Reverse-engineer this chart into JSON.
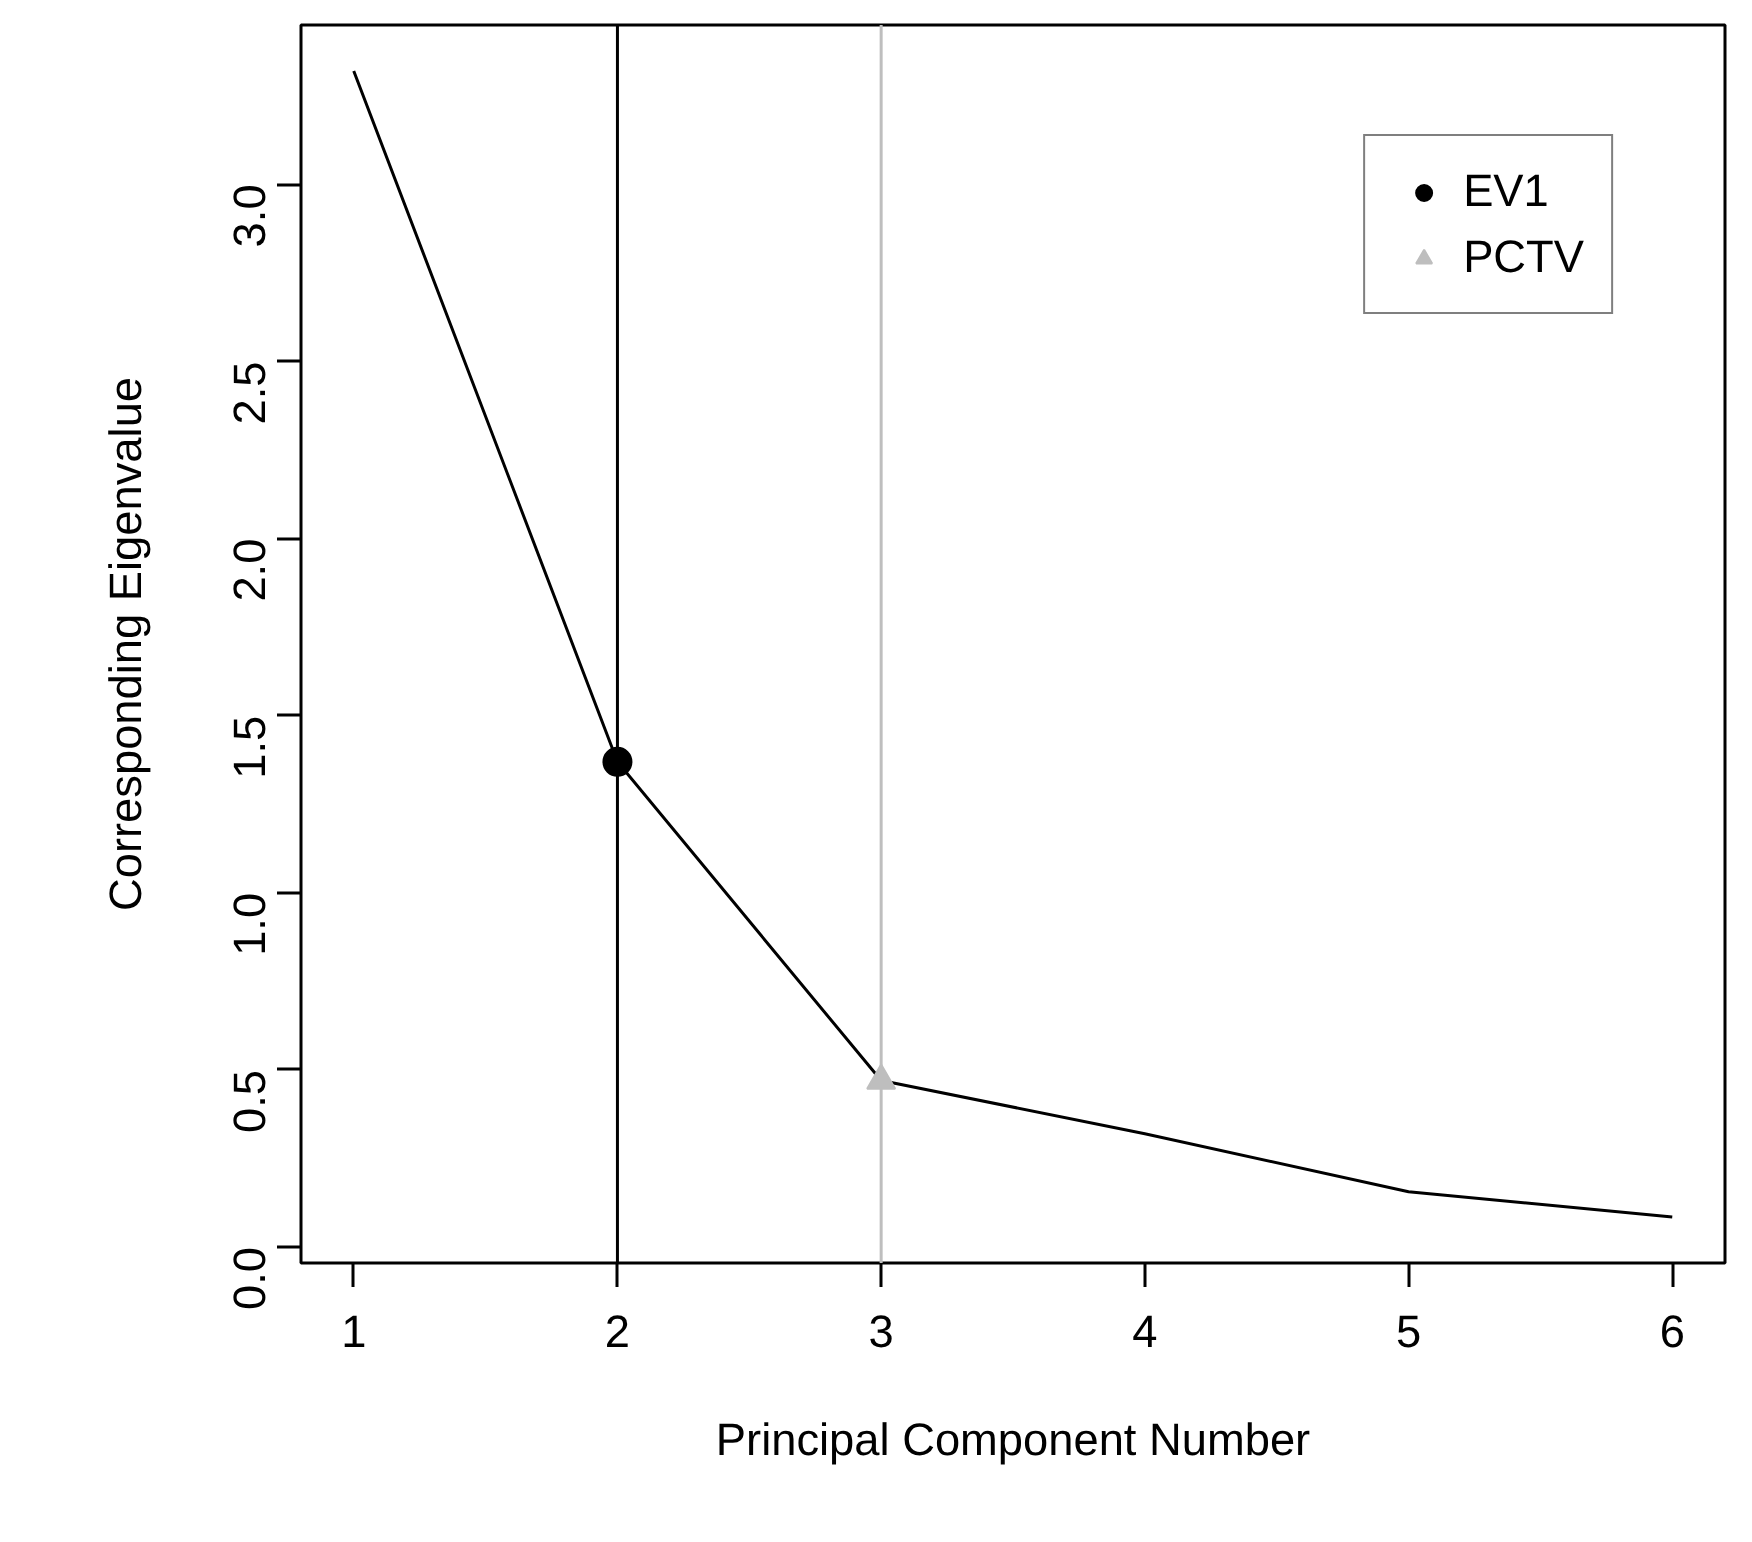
{
  "chart_data": {
    "type": "line",
    "xlabel": "Principal Component Number",
    "ylabel": "Corresponding Eigenvalue",
    "x": [
      1,
      2,
      3,
      4,
      5,
      6
    ],
    "series": [
      {
        "color": "#000000",
        "values": [
          3.32,
          1.37,
          0.47,
          0.32,
          0.156,
          0.085
        ],
        "marker": "none"
      },
      {
        "type": "scatter",
        "name": "EV1",
        "color": "#000000",
        "x": [
          2
        ],
        "values": [
          1.37
        ],
        "marker": "circle"
      },
      {
        "type": "scatter",
        "name": "PCTV",
        "color": "#bebebe",
        "x": [
          3
        ],
        "values": [
          0.47
        ],
        "marker": "triangle"
      }
    ],
    "ref_lines": [
      {
        "axis": "x",
        "value": 2,
        "color": "#000000"
      },
      {
        "axis": "x",
        "value": 3,
        "color": "#bebebe"
      }
    ],
    "xlim": [
      0.8,
      6.2
    ],
    "ylim": [
      -0.045,
      3.45
    ],
    "xticks": [
      1,
      2,
      3,
      4,
      5,
      6
    ],
    "yticks": [
      {
        "value": 0,
        "label": "0.0"
      },
      0.5,
      {
        "value": 1,
        "label": "1.0"
      },
      1.5,
      {
        "value": 2,
        "label": "2.0"
      },
      2.5,
      {
        "value": 3,
        "label": "3.0"
      }
    ],
    "grid": false,
    "legend": "top right"
  }
}
